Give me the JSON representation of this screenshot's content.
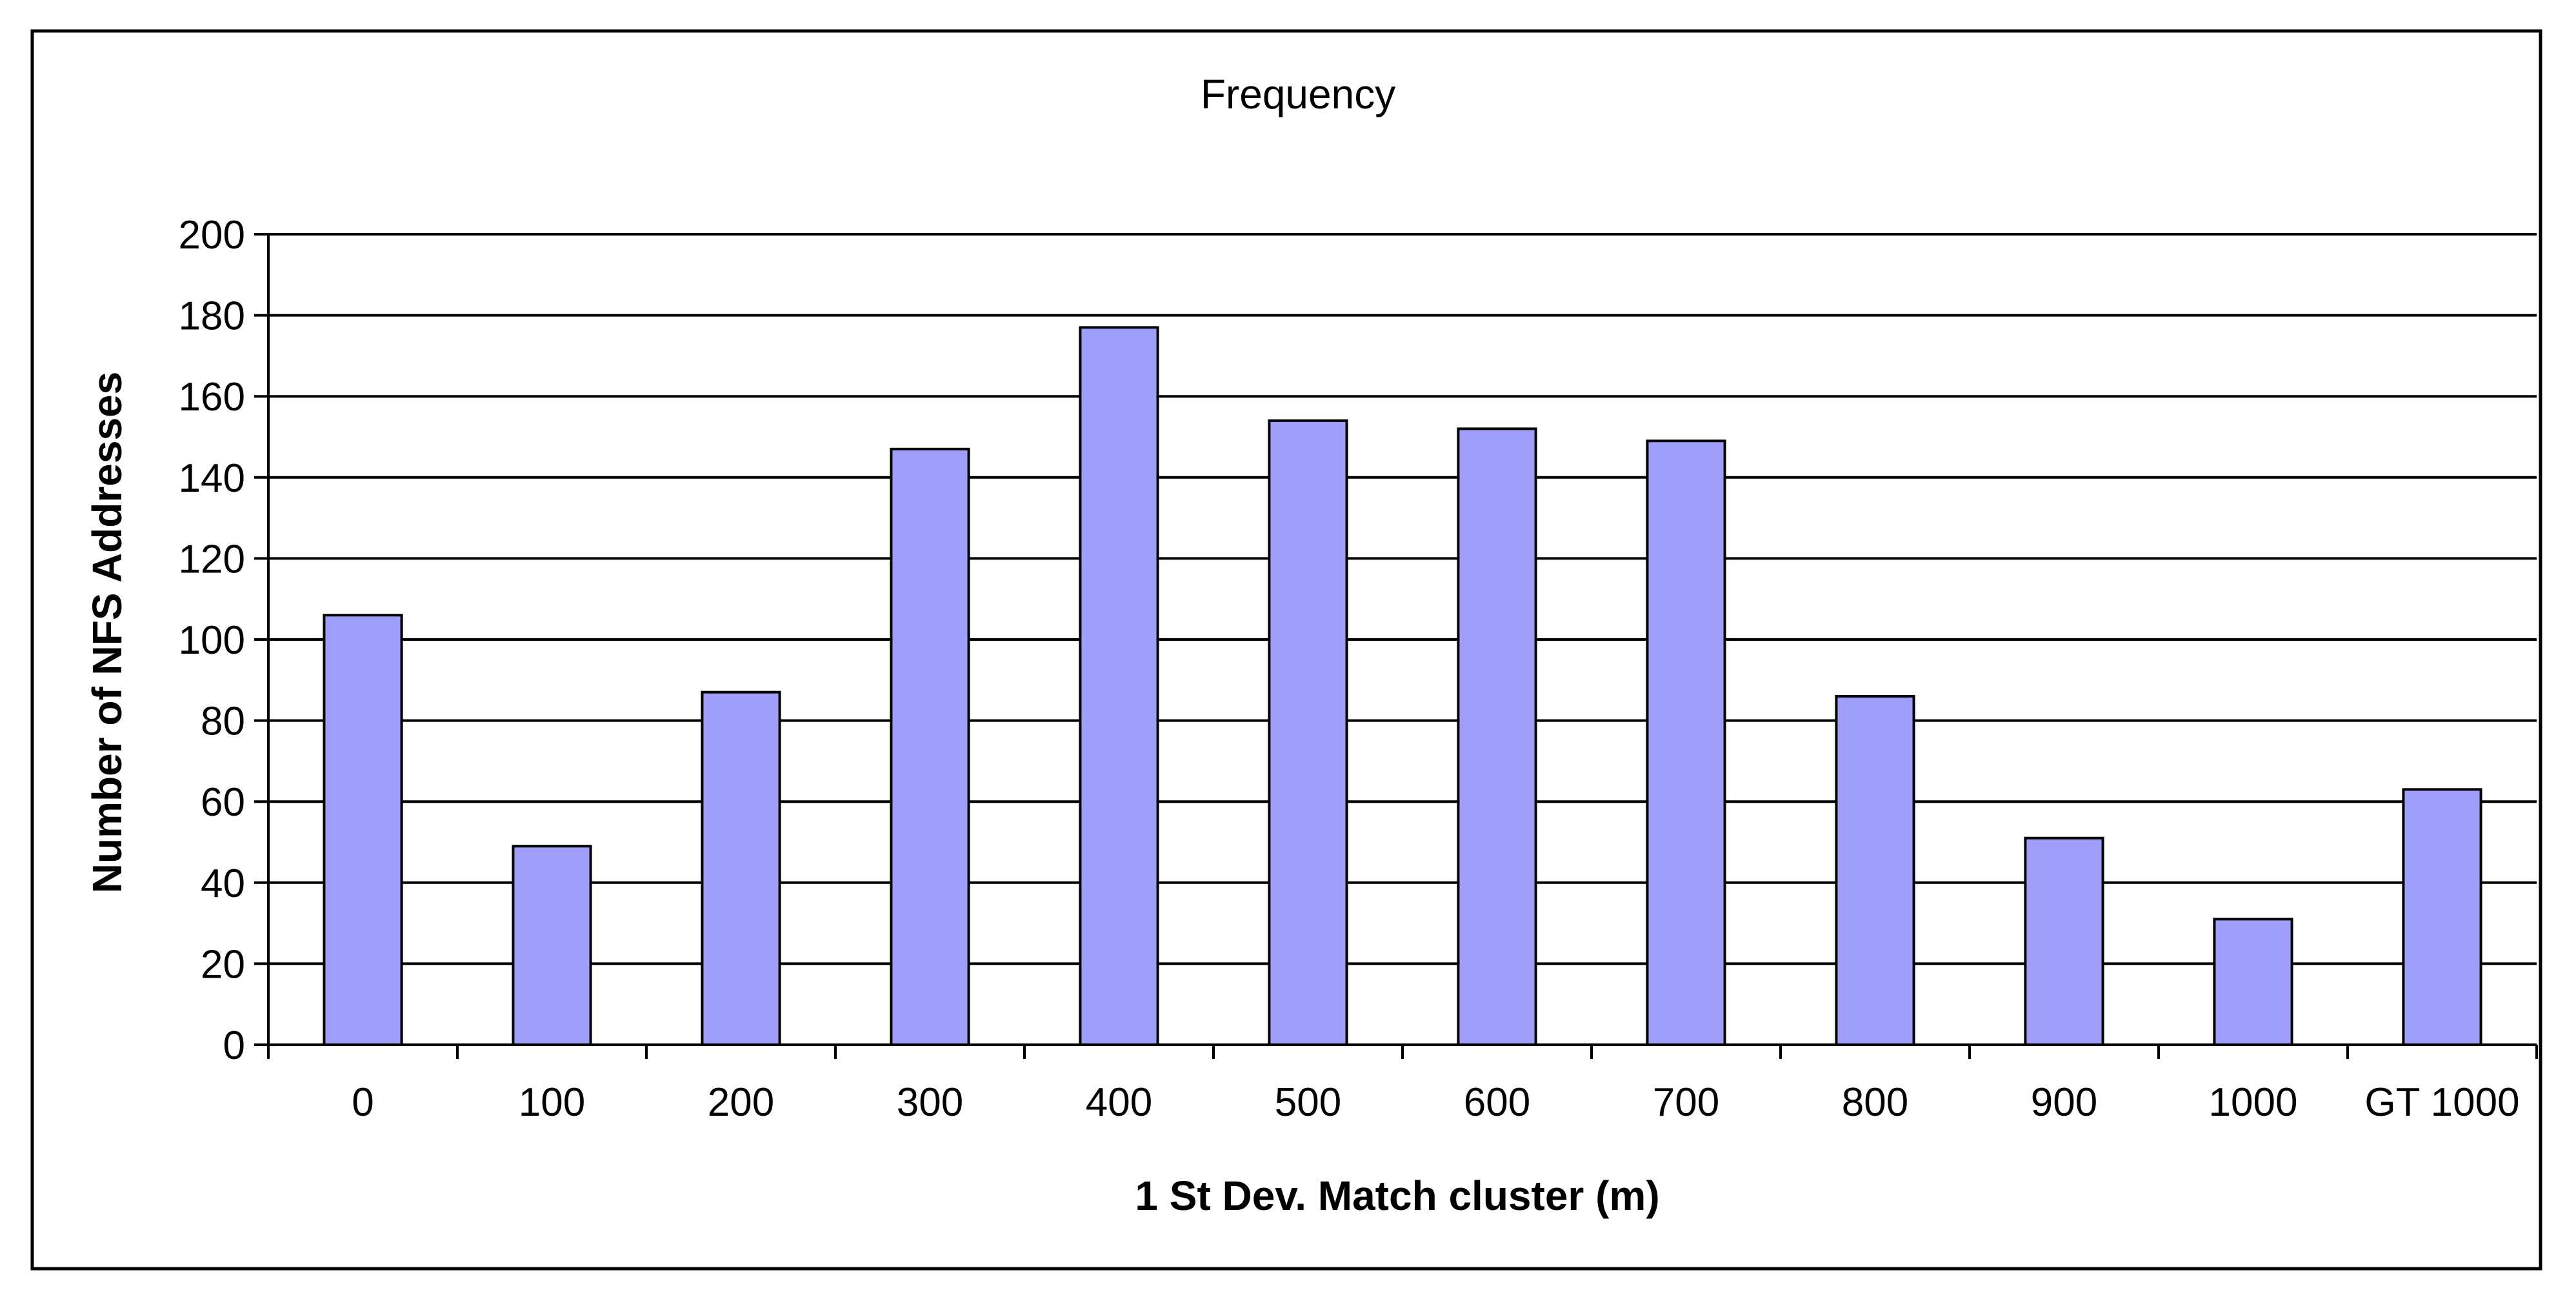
{
  "chart_data": {
    "type": "bar",
    "title": "Frequency",
    "xlabel": "1 St Dev. Match cluster (m)",
    "ylabel": "Number of NFS Addresses",
    "categories": [
      "0",
      "100",
      "200",
      "300",
      "400",
      "500",
      "600",
      "700",
      "800",
      "900",
      "1000",
      "GT 1000"
    ],
    "values": [
      106,
      49,
      87,
      147,
      177,
      154,
      152,
      149,
      86,
      51,
      31,
      63
    ],
    "ylim": [
      0,
      200
    ],
    "yticks": [
      0,
      20,
      40,
      60,
      80,
      100,
      120,
      140,
      160,
      180,
      200
    ],
    "grid": true,
    "legend": "none",
    "colors": {
      "bar_fill": "#9f9ffb",
      "bar_stroke": "#000000",
      "grid": "#000000",
      "axis": "#000000",
      "frame": "#000000"
    }
  }
}
